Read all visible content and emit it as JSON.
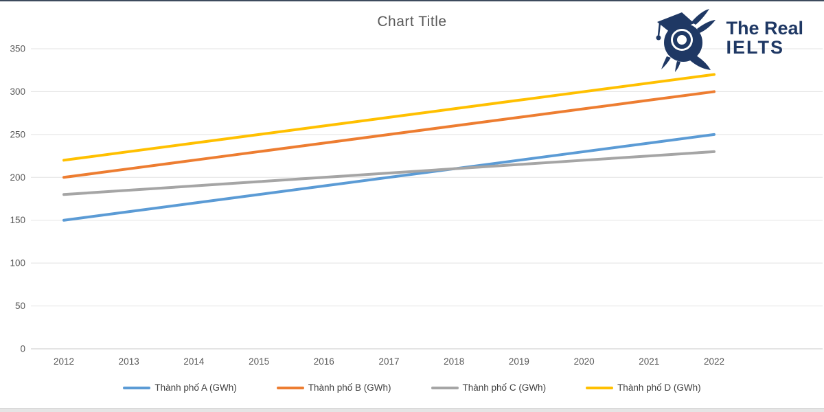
{
  "chart_data": {
    "type": "line",
    "title": "Chart Title",
    "x": [
      2012,
      2013,
      2014,
      2015,
      2016,
      2017,
      2018,
      2019,
      2020,
      2021,
      2022
    ],
    "series": [
      {
        "name": "Thành phố A (GWh)",
        "color": "#5B9BD5",
        "values": [
          150,
          160,
          170,
          180,
          190,
          200,
          210,
          220,
          230,
          240,
          250
        ]
      },
      {
        "name": "Thành phố B (GWh)",
        "color": "#ED7D31",
        "values": [
          200,
          210,
          220,
          230,
          240,
          250,
          260,
          270,
          280,
          290,
          300
        ]
      },
      {
        "name": "Thành phố C (GWh)",
        "color": "#A5A5A5",
        "values": [
          180,
          185,
          190,
          195,
          200,
          205,
          210,
          215,
          220,
          225,
          230
        ]
      },
      {
        "name": "Thành phố D (GWh)",
        "color": "#FFC000",
        "values": [
          220,
          230,
          240,
          250,
          260,
          270,
          280,
          290,
          300,
          310,
          320
        ]
      }
    ],
    "xlabel": "",
    "ylabel": "",
    "ylim": [
      0,
      350
    ],
    "ytick_step": 50,
    "grid": true,
    "legend_position": "bottom"
  },
  "logo": {
    "line1": "The Real",
    "line2": "IELTS",
    "color": "#1F3864"
  }
}
